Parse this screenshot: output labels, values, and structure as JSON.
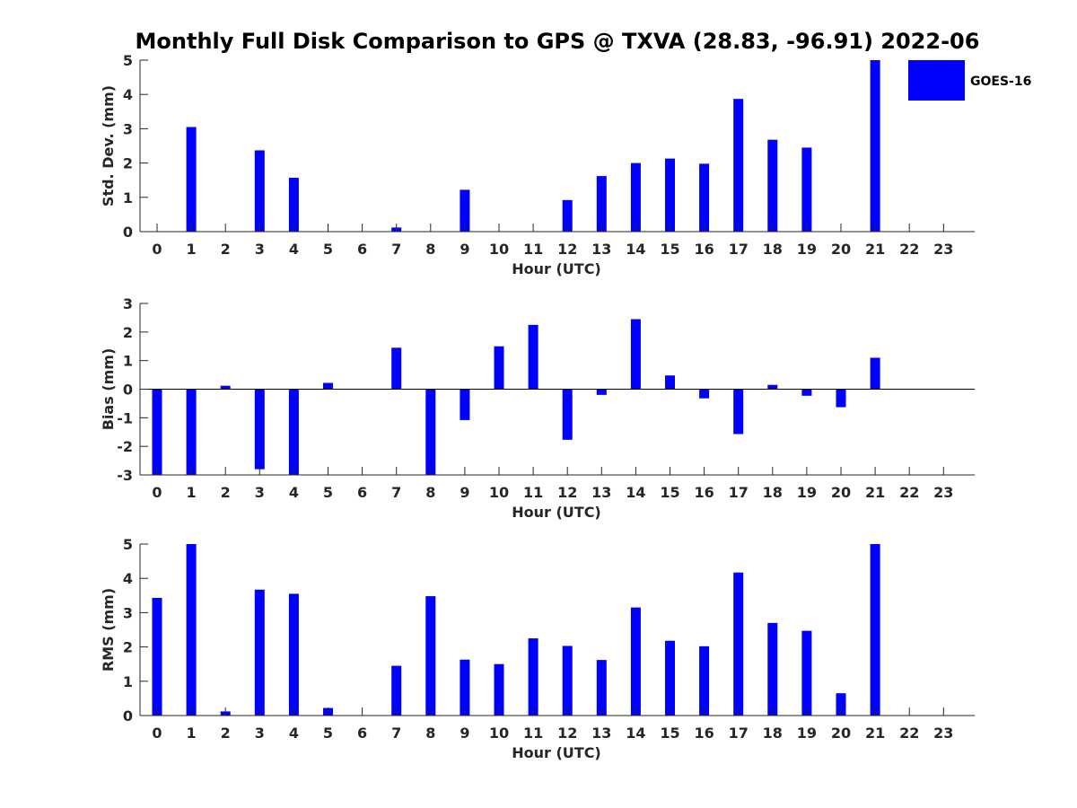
{
  "figure": {
    "title": "Monthly Full Disk Comparison to GPS @ TXVA (28.83, -96.91) 2022-06"
  },
  "legend": {
    "label": "GOES-16",
    "placement": "top-right"
  },
  "colors": {
    "bar": "#0000ff",
    "axis": "#262626"
  },
  "chart_data": [
    {
      "type": "bar",
      "xlabel": "Hour (UTC)",
      "ylabel": "Std. Dev. (mm)",
      "ylim": [
        0,
        5
      ],
      "yticks": [
        0,
        1,
        2,
        3,
        4,
        5
      ],
      "categories": [
        "0",
        "1",
        "2",
        "3",
        "4",
        "5",
        "6",
        "7",
        "8",
        "9",
        "10",
        "11",
        "12",
        "13",
        "14",
        "15",
        "16",
        "17",
        "18",
        "19",
        "20",
        "21",
        "22",
        "23"
      ],
      "series": [
        {
          "name": "GOES-16",
          "values": [
            null,
            3.05,
            null,
            2.37,
            1.57,
            null,
            null,
            0.12,
            null,
            1.22,
            null,
            null,
            0.92,
            1.62,
            2.0,
            2.13,
            1.98,
            3.87,
            2.68,
            2.45,
            null,
            5.0,
            null,
            null
          ]
        }
      ],
      "grid": false
    },
    {
      "type": "bar",
      "xlabel": "Hour (UTC)",
      "ylabel": "Bias (mm)",
      "ylim": [
        -3,
        3
      ],
      "yticks": [
        -3,
        -2,
        -1,
        0,
        1,
        2,
        3
      ],
      "categories": [
        "0",
        "1",
        "2",
        "3",
        "4",
        "5",
        "6",
        "7",
        "8",
        "9",
        "10",
        "11",
        "12",
        "13",
        "14",
        "15",
        "16",
        "17",
        "18",
        "19",
        "20",
        "21",
        "22",
        "23"
      ],
      "series": [
        {
          "name": "GOES-16",
          "values": [
            -3.0,
            -3.0,
            0.12,
            -2.8,
            -3.0,
            0.22,
            null,
            1.45,
            -3.0,
            -1.08,
            1.5,
            2.25,
            -1.77,
            -0.2,
            2.45,
            0.48,
            -0.32,
            -1.57,
            0.15,
            -0.23,
            -0.63,
            1.1,
            null,
            null
          ]
        }
      ],
      "grid": false
    },
    {
      "type": "bar",
      "xlabel": "Hour (UTC)",
      "ylabel": "RMS (mm)",
      "ylim": [
        0,
        5
      ],
      "yticks": [
        0,
        1,
        2,
        3,
        4,
        5
      ],
      "categories": [
        "0",
        "1",
        "2",
        "3",
        "4",
        "5",
        "6",
        "7",
        "8",
        "9",
        "10",
        "11",
        "12",
        "13",
        "14",
        "15",
        "16",
        "17",
        "18",
        "19",
        "20",
        "21",
        "22",
        "23"
      ],
      "series": [
        {
          "name": "GOES-16",
          "values": [
            3.43,
            5.0,
            0.12,
            3.67,
            3.55,
            0.22,
            null,
            1.45,
            3.48,
            1.63,
            1.5,
            2.25,
            2.03,
            1.62,
            3.15,
            2.18,
            2.02,
            4.17,
            2.7,
            2.47,
            0.65,
            5.0,
            null,
            null
          ]
        }
      ],
      "grid": false
    }
  ]
}
